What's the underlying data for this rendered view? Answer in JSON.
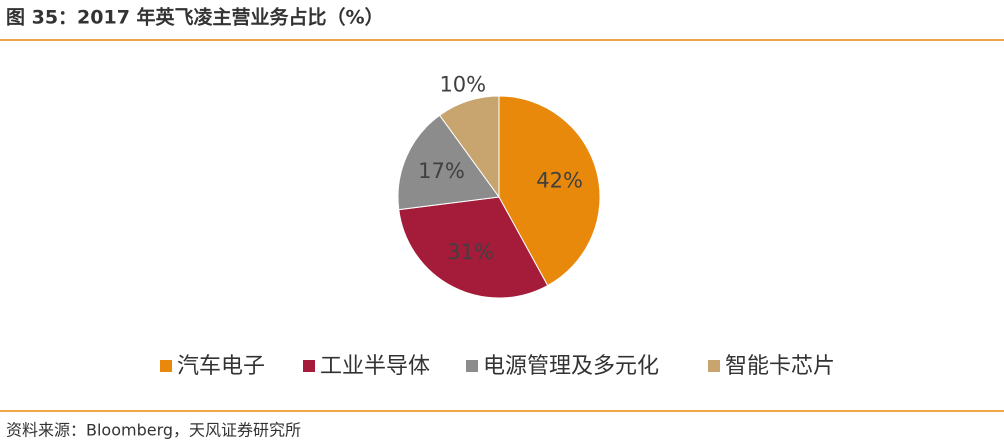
{
  "chart_data": {
    "type": "pie",
    "title": "图 35：2017 年英飞凌主营业务占比（%）",
    "source": "资料来源：Bloomberg，天风证券研究所",
    "categories": [
      "汽车电子",
      "工业半导体",
      "电源管理及多元化",
      "智能卡芯片"
    ],
    "values": [
      42,
      31,
      17,
      10
    ],
    "value_labels": [
      "42%",
      "31%",
      "17%",
      "10%"
    ],
    "colors": [
      "#E8890C",
      "#A51C3A",
      "#8C8C8C",
      "#C8A56E"
    ],
    "legend": "bottom"
  }
}
